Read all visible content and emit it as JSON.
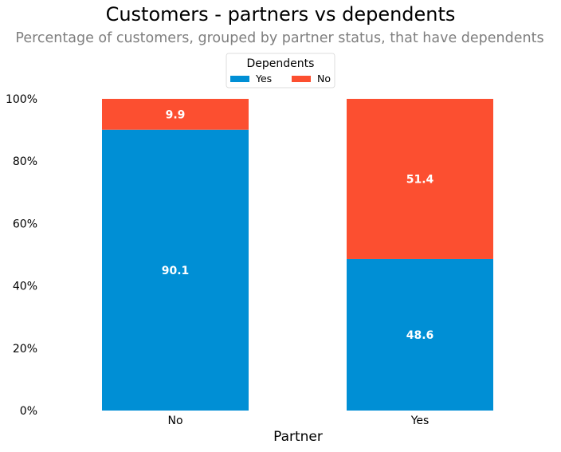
{
  "chart_data": {
    "type": "bar",
    "stacked": true,
    "title": "Customers - partners vs dependents",
    "subtitle": "Percentage of customers, grouped by partner status, that have dependents",
    "xlabel": "Partner",
    "ylabel": "",
    "categories": [
      "No",
      "Yes"
    ],
    "series": [
      {
        "name": "Yes",
        "values": [
          90.1,
          48.6
        ],
        "color": "#008fd5"
      },
      {
        "name": "No",
        "values": [
          9.9,
          51.4
        ],
        "color": "#fc4f30"
      }
    ],
    "data_labels": [
      [
        "90.1",
        "48.6"
      ],
      [
        "9.9",
        "51.4"
      ]
    ],
    "ylim": [
      0,
      100
    ],
    "yticks": [
      0,
      20,
      40,
      60,
      80,
      100
    ],
    "ytick_labels": [
      "0%",
      "20%",
      "40%",
      "60%",
      "80%",
      "100%"
    ],
    "grid": false,
    "legend": {
      "title": "Dependents",
      "position": "top-center",
      "columns": 2
    }
  }
}
